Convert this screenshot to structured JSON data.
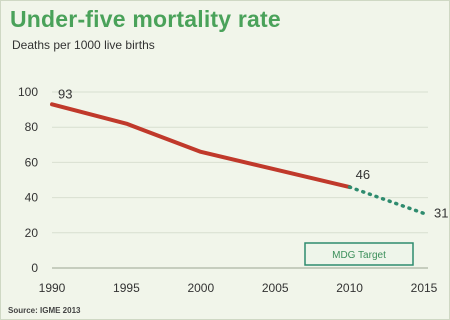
{
  "chart_data": {
    "type": "line",
    "title": "Under-five mortality rate",
    "subtitle": "Deaths per 1000 live births",
    "source": "Source: IGME 2013",
    "x_ticks": [
      1990,
      1995,
      2000,
      2005,
      2010,
      2015
    ],
    "y_ticks": [
      0,
      20,
      40,
      60,
      80,
      100
    ],
    "xlim": [
      1990,
      2015
    ],
    "ylim": [
      0,
      100
    ],
    "grid": "horizontal",
    "colors": {
      "actual": "#c0392b",
      "target": "#2e8b6e",
      "grid": "#d8dfd0"
    },
    "series": [
      {
        "key": "actual",
        "style": "solid",
        "x": [
          1990,
          1995,
          2000,
          2005,
          2010
        ],
        "y": [
          93,
          82,
          66,
          56,
          46
        ]
      },
      {
        "key": "target",
        "style": "dotted",
        "x": [
          2010,
          2015
        ],
        "y": [
          46,
          31
        ]
      }
    ],
    "data_labels": [
      {
        "x": 1990,
        "y": 93,
        "text": "93"
      },
      {
        "x": 2010,
        "y": 46,
        "text": "46"
      },
      {
        "x": 2015,
        "y": 31,
        "text": "31"
      }
    ],
    "legend": {
      "label": "MDG Target",
      "placement": "bottom-right"
    }
  }
}
